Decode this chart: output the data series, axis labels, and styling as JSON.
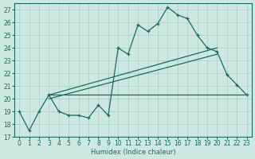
{
  "xlabel": "Humidex (Indice chaleur)",
  "xlim": [
    -0.5,
    23.5
  ],
  "ylim": [
    17,
    27.5
  ],
  "yticks": [
    17,
    18,
    19,
    20,
    21,
    22,
    23,
    24,
    25,
    26,
    27
  ],
  "xticks": [
    0,
    1,
    2,
    3,
    4,
    5,
    6,
    7,
    8,
    9,
    10,
    11,
    12,
    13,
    14,
    15,
    16,
    17,
    18,
    19,
    20,
    21,
    22,
    23
  ],
  "bg_color": "#cde8e0",
  "grid_color": "#aacfc4",
  "line_color": "#1a6b5a",
  "line1_x": [
    0,
    1,
    2,
    3,
    4,
    5,
    6,
    7,
    8,
    9,
    10,
    11,
    12,
    13,
    14,
    15,
    16,
    17,
    18,
    19,
    20,
    21,
    22,
    23
  ],
  "line1_y": [
    19,
    17.5,
    19,
    20.3,
    19,
    18.7,
    18.7,
    18.5,
    19.5,
    18.7,
    24.0,
    23.5,
    25.8,
    25.3,
    25.9,
    27.2,
    26.6,
    26.3,
    25.0,
    24.0,
    23.7,
    21.9,
    21.1,
    20.3
  ],
  "line2_x": [
    3,
    23
  ],
  "line2_y": [
    20.3,
    20.3
  ],
  "line3_x": [
    3,
    20
  ],
  "line3_y": [
    20.3,
    24.0
  ],
  "line4_x": [
    3,
    20
  ],
  "line4_y": [
    20.0,
    23.5
  ]
}
